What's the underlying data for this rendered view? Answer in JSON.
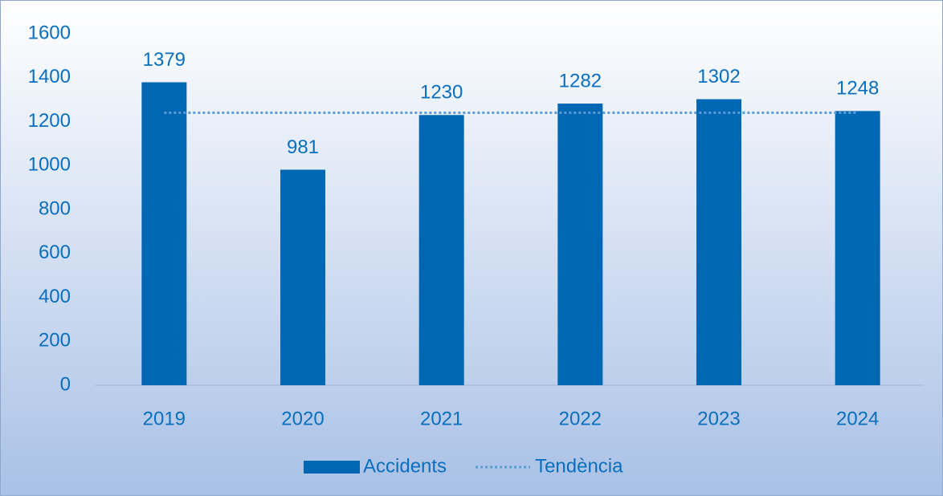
{
  "chart_data": {
    "type": "bar",
    "categories": [
      "2019",
      "2020",
      "2021",
      "2022",
      "2023",
      "2024"
    ],
    "series": [
      {
        "name": "Accidents",
        "type": "bar",
        "color": "#0067b4",
        "values": [
          1379,
          981,
          1230,
          1282,
          1302,
          1248
        ]
      },
      {
        "name": "Tendència",
        "type": "line",
        "color": "#5b9bd5",
        "values": [
          1240,
          1240,
          1240,
          1240,
          1240,
          1240
        ]
      }
    ],
    "ylim": [
      0,
      1600
    ],
    "yticks": [
      0,
      200,
      400,
      600,
      800,
      1000,
      1200,
      1400,
      1600
    ],
    "grid": false,
    "legend": "bottom",
    "data_labels": true
  }
}
